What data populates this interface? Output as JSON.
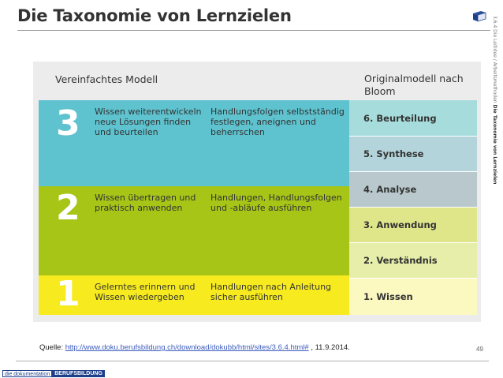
{
  "header": {
    "title": "Die Taxonomie von Lernzielen",
    "icon": "book-icon",
    "side_meta_prefix": "3.6.4   Die Leitidee / Arbeitsmethoden",
    "side_meta_title": "Die Taxonomie von Lernzielen"
  },
  "diagram": {
    "left_heading": "Vereinfachtes Modell",
    "right_heading": "Originalmodell nach Bloom",
    "bands": [
      {
        "number": "3",
        "color": "#5ec3cf",
        "col_a": "Wissen weiterentwickeln neue Lösungen finden und beurteilen",
        "col_b": "Handlungsfolgen selbstständig festlegen, aneignen und beherrschen"
      },
      {
        "number": "2",
        "color": "#a6c517",
        "col_a": "Wissen übertragen und praktisch anwenden",
        "col_b": "Handlungen, Handlungsfolgen und -abläufe ausführen"
      },
      {
        "number": "1",
        "color": "#f7eb1f",
        "col_a": "Gelerntes erinnern und Wissen wiedergeben",
        "col_b": "Handlungen nach Anleitung sicher ausführen"
      }
    ],
    "bloom_levels": [
      "6. Beurteilung",
      "5. Synthese",
      "4. Analyse",
      "3. Anwendung",
      "2. Verständnis",
      "1. Wissen"
    ]
  },
  "source": {
    "prefix": "Quelle: ",
    "url": "http://www.doku.berufsbildung.ch/download/dokubb/html/sites/3.6.4.html#",
    "suffix": " , 11.9.2014."
  },
  "footer": {
    "page_number": "49",
    "logo_left": "die dokumentation",
    "logo_right": "BERUFSBILDUNG"
  }
}
